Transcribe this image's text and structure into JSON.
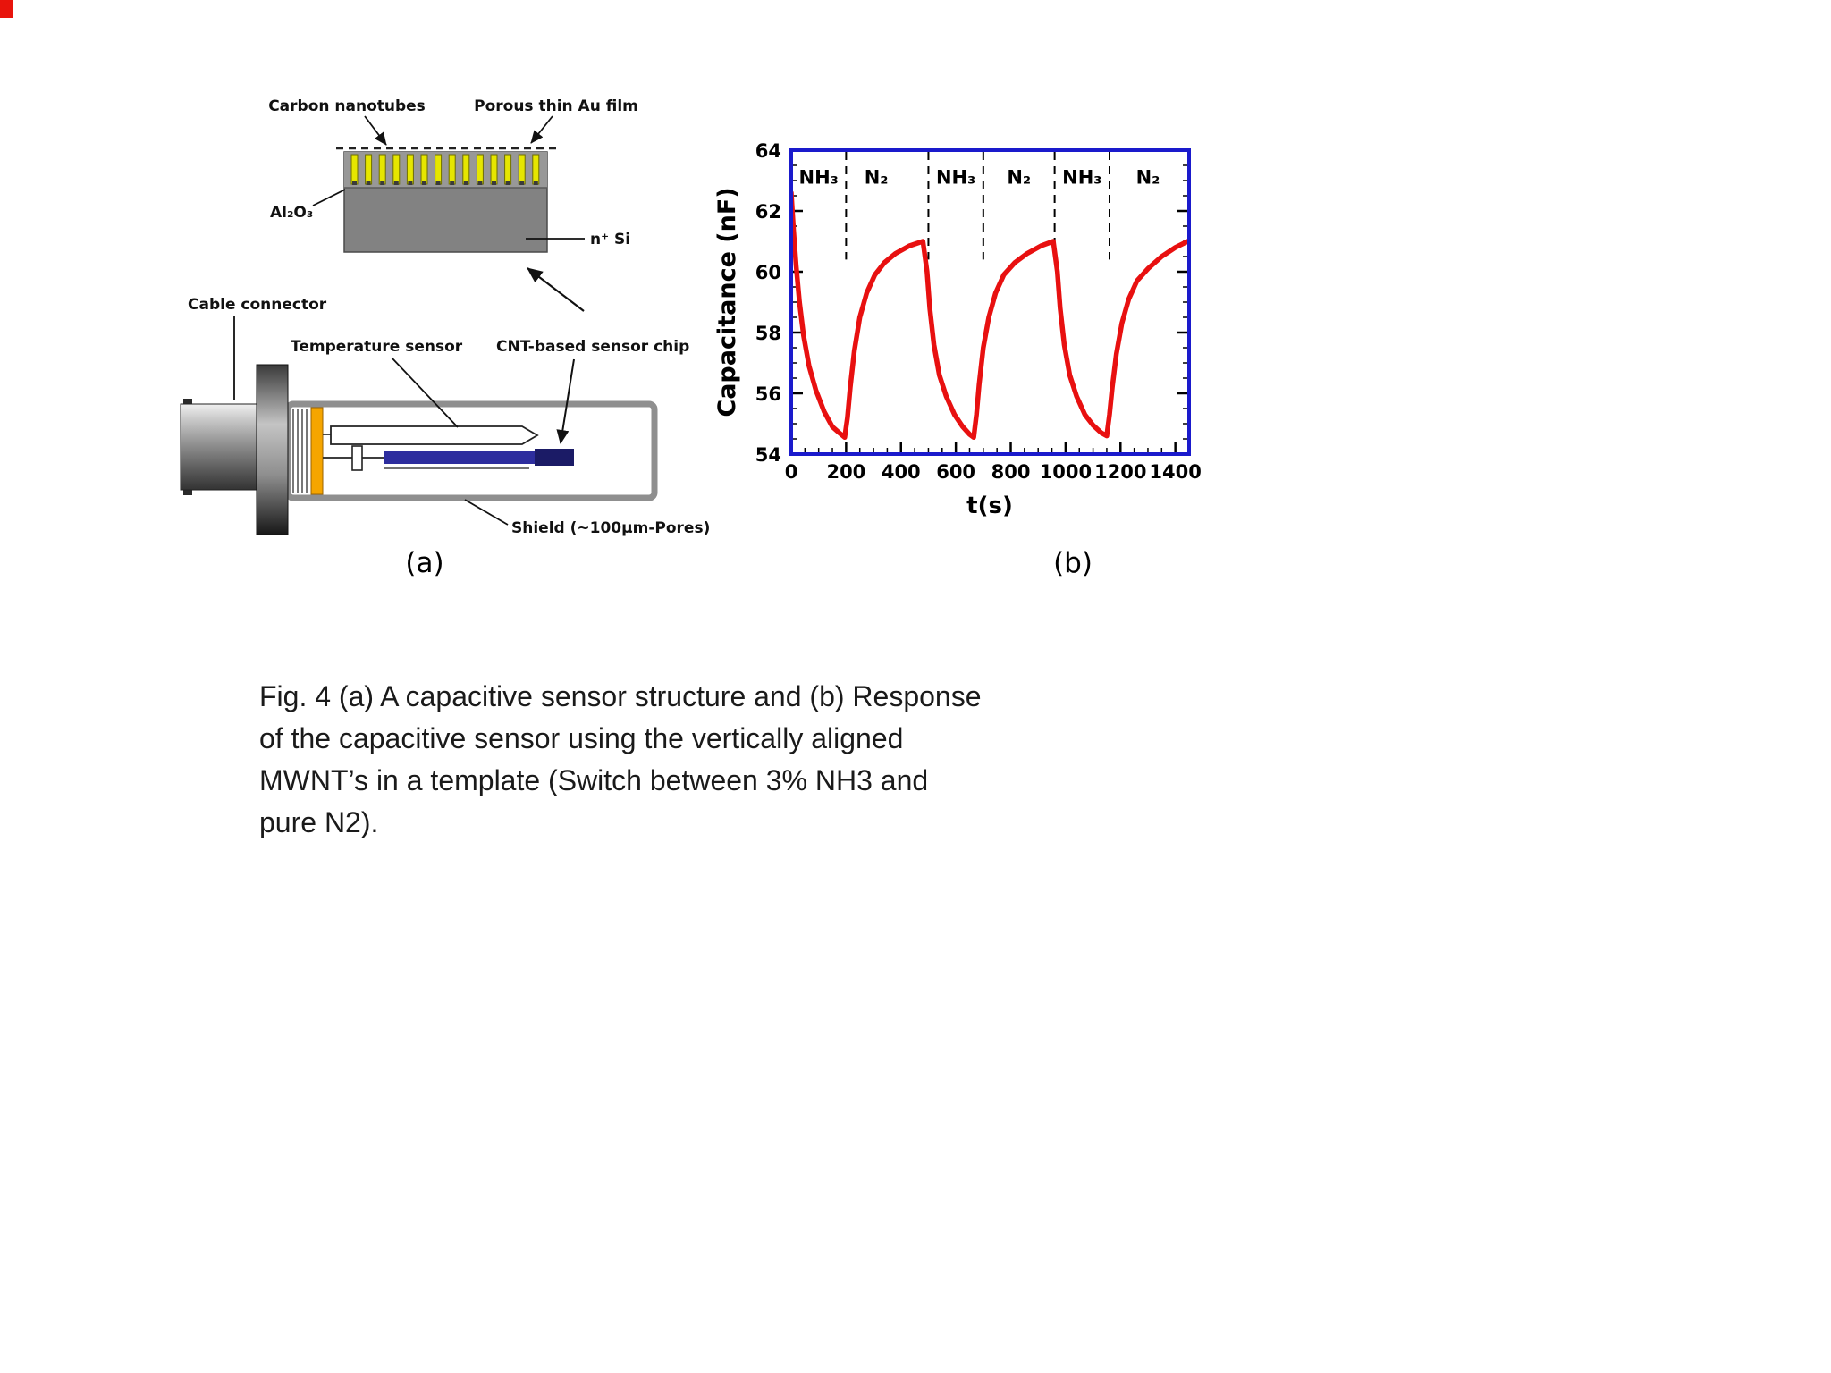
{
  "page": {
    "background": "#ffffff"
  },
  "figure": {
    "panel_a": {
      "label": "(a)",
      "nanotube_bar_count": 14,
      "labels": {
        "carbon_nanotubes": "Carbon nanotubes",
        "porous_au_film": "Porous thin Au film",
        "al2o3": "Al₂O₃",
        "n_si": "n⁺ Si",
        "cable_connector": "Cable connector",
        "temperature_sensor": "Temperature sensor",
        "cnt_sensor_chip": "CNT-based sensor chip",
        "shield": "Shield (~100μm-Pores)"
      },
      "colors": {
        "nanotube_yellow": "#e6e600",
        "chip_blue": "#2d2d9e",
        "band_orange": "#f5a500"
      }
    },
    "panel_b": {
      "label": "(b)"
    }
  },
  "chart_data": {
    "type": "line",
    "title": "",
    "xlabel": "t(s)",
    "ylabel": "Capacitance (nF)",
    "xlim": [
      0,
      1450
    ],
    "ylim": [
      54,
      64
    ],
    "x_ticks": [
      0,
      200,
      400,
      600,
      800,
      1000,
      1200,
      1400
    ],
    "y_ticks": [
      54,
      56,
      58,
      60,
      62,
      64
    ],
    "x_minor_step": 50,
    "y_minor_step": 0.5,
    "grid": false,
    "border_color": "#1a1acc",
    "dashed_boundaries_t": [
      200,
      500,
      700,
      960,
      1160
    ],
    "dashed_line_bottom_value": 60.4,
    "region_label_value": 62.9,
    "region_labels": [
      {
        "text": "NH₃",
        "t": 100
      },
      {
        "text": "N₂",
        "t": 310
      },
      {
        "text": "NH₃",
        "t": 600
      },
      {
        "text": "N₂",
        "t": 830
      },
      {
        "text": "NH₃",
        "t": 1060
      },
      {
        "text": "N₂",
        "t": 1300
      }
    ],
    "series": [
      {
        "name": "Capacitance response (switch between 3% NH3 and pure N2)",
        "color": "#e81010",
        "x": [
          0,
          8,
          18,
          30,
          45,
          65,
          90,
          120,
          150,
          175,
          195,
          205,
          215,
          230,
          250,
          275,
          305,
          340,
          380,
          430,
          480,
          495,
          505,
          520,
          540,
          565,
          595,
          625,
          650,
          665,
          675,
          685,
          700,
          720,
          745,
          775,
          815,
          860,
          910,
          955,
          970,
          980,
          995,
          1015,
          1040,
          1070,
          1100,
          1130,
          1150,
          1160,
          1170,
          1185,
          1205,
          1230,
          1260,
          1300,
          1350,
          1400,
          1445
        ],
        "y": [
          62.6,
          61.4,
          60.2,
          59.0,
          57.9,
          56.9,
          56.1,
          55.4,
          54.9,
          54.7,
          54.55,
          55.2,
          56.2,
          57.4,
          58.5,
          59.3,
          59.9,
          60.3,
          60.6,
          60.85,
          61.0,
          60.0,
          58.8,
          57.6,
          56.6,
          55.9,
          55.3,
          54.9,
          54.65,
          54.55,
          55.3,
          56.3,
          57.5,
          58.5,
          59.3,
          59.9,
          60.3,
          60.6,
          60.85,
          61.0,
          60.0,
          58.8,
          57.6,
          56.6,
          55.9,
          55.3,
          54.95,
          54.7,
          54.6,
          55.3,
          56.2,
          57.3,
          58.3,
          59.1,
          59.7,
          60.1,
          60.5,
          60.8,
          61.0
        ]
      }
    ]
  },
  "caption": {
    "lines": [
      "Fig. 4 (a) A capacitive sensor structure and (b) Response",
      "of the capacitive sensor using the vertically aligned",
      "MWNT’s in a template (Switch between 3% NH3 and",
      "pure N2)."
    ]
  }
}
